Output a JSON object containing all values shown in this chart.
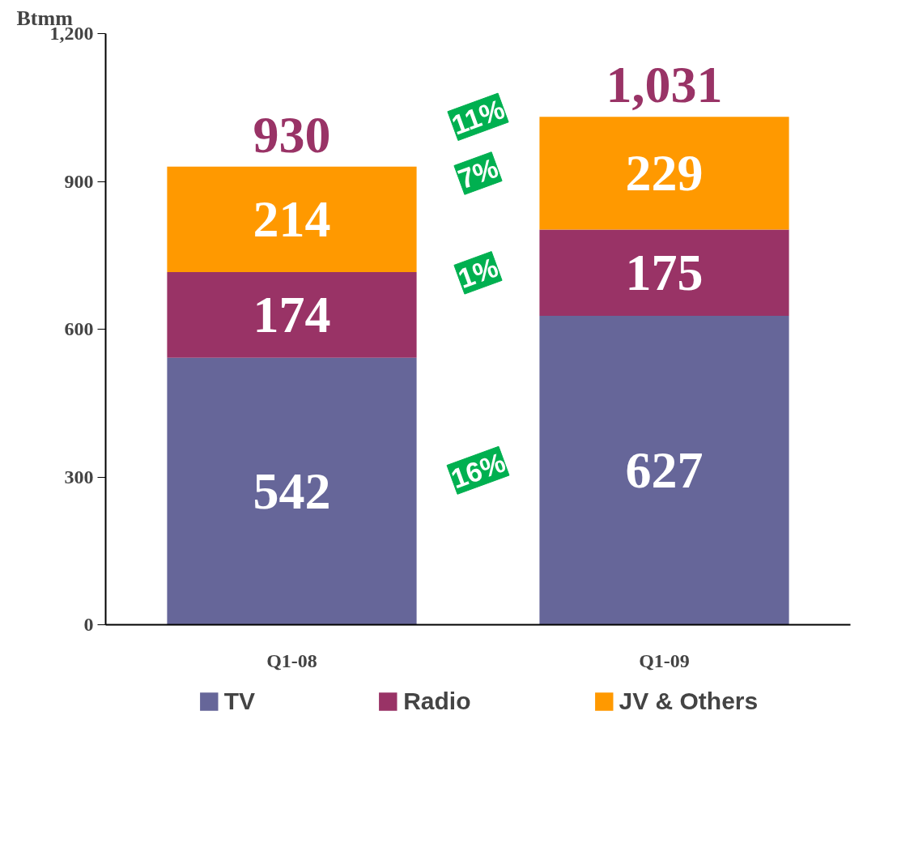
{
  "chart_data": {
    "type": "bar",
    "stacked": true,
    "ylabel": "Btmm",
    "categories": [
      "Q1-08",
      "Q1-09"
    ],
    "series": [
      {
        "name": "TV",
        "color": "#666699",
        "values": [
          542,
          627
        ]
      },
      {
        "name": "Radio",
        "color": "#993366",
        "values": [
          174,
          175
        ]
      },
      {
        "name": "JV & Others",
        "color": "#ff9900",
        "values": [
          214,
          229
        ]
      }
    ],
    "totals": [
      "930",
      "1,031"
    ],
    "annotations": [
      "11%",
      "7%",
      "1%",
      "16%"
    ],
    "ylim": [
      0,
      1200
    ],
    "yticks": [
      0,
      300,
      600,
      900,
      {
        "value": 1200,
        "label": "1,200"
      }
    ],
    "data_labels": true,
    "grid": false,
    "legend": "bottom"
  }
}
